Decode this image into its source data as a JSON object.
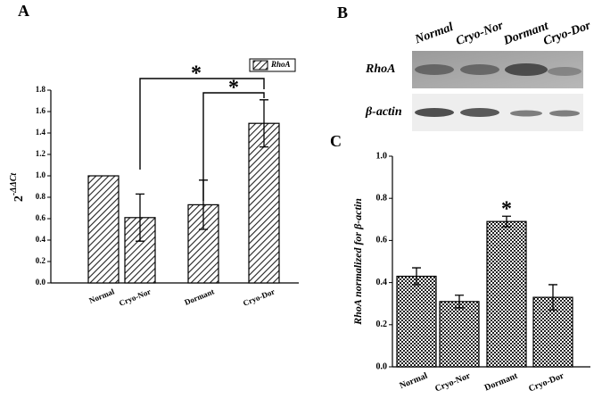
{
  "chart_data": [
    {
      "type": "bar",
      "panel": "A",
      "categories": [
        "Normal",
        "Cryo-Nor",
        "Dormant",
        "Cryo-Dor"
      ],
      "values": [
        1.0,
        0.61,
        0.73,
        1.49
      ],
      "errors": [
        0,
        0.22,
        0.23,
        0.22
      ],
      "ylabel": {
        "base": "2",
        "superscript": "-ΔΔCt"
      },
      "legend": "RhoA",
      "ylim": [
        0,
        1.8
      ],
      "yticks": [
        {
          "value": 0,
          "label": "0.0"
        },
        0.2,
        0.4,
        0.6,
        0.8,
        {
          "value": 1,
          "label": "1.0"
        },
        1.2,
        1.4,
        1.6,
        1.8
      ],
      "annotations": [
        "*",
        "*"
      ],
      "pattern": "hatch"
    },
    {
      "type": "bar",
      "panel": "C",
      "categories": [
        "Normal",
        "Cryo-Nor",
        "Dormant",
        "Cryo-Dor"
      ],
      "values": [
        0.43,
        0.31,
        0.69,
        0.33
      ],
      "errors": [
        0.04,
        0.03,
        0.025,
        0.06
      ],
      "ylabel": "RhoA normalized for β-actin",
      "ylim": [
        0,
        1.0
      ],
      "yticks": [
        {
          "value": 0,
          "label": "0.0"
        },
        0.2,
        0.4,
        0.6,
        0.8,
        {
          "value": 1,
          "label": "1.0"
        }
      ],
      "annotations": [
        "*"
      ],
      "pattern": "check"
    }
  ],
  "blot": {
    "panel": "B",
    "lanes": [
      "Normal",
      "Cryo-Nor",
      "Dormant",
      "Cryo-Dor"
    ],
    "rows": [
      "RhoA",
      "β-actin"
    ]
  }
}
